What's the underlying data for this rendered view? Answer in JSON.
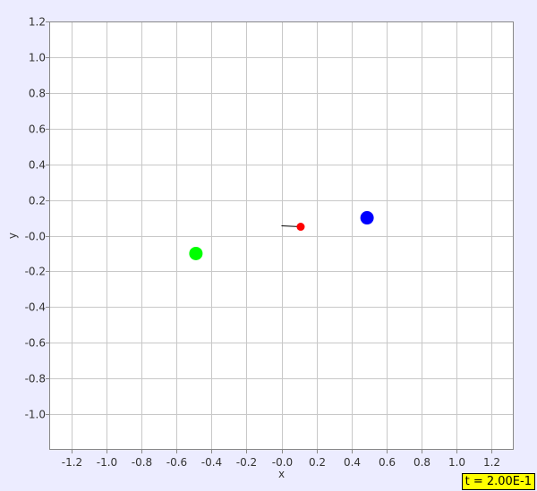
{
  "chart_data": {
    "type": "scatter",
    "xlabel": "x",
    "ylabel": "y",
    "xlim": [
      -1.33,
      1.33
    ],
    "ylim": [
      -1.2,
      1.2
    ],
    "x_ticks": [
      -1.2,
      -1.0,
      -0.8,
      -0.6,
      -0.4,
      -0.2,
      0.0,
      0.2,
      0.4,
      0.6,
      0.8,
      1.0,
      1.2
    ],
    "x_tick_labels": [
      "-1.2",
      "-1.0",
      "-0.8",
      "-0.6",
      "-0.4",
      "-0.2",
      "-0.0",
      "0.2",
      "0.4",
      "0.6",
      "0.8",
      "1.0",
      "1.2"
    ],
    "y_ticks": [
      1.2,
      1.0,
      0.8,
      0.6,
      0.4,
      0.2,
      0.0,
      -0.2,
      -0.4,
      -0.6,
      -0.8,
      -1.0
    ],
    "y_tick_labels": [
      "1.2",
      "1.0",
      "0.8",
      "0.6",
      "0.4",
      "0.2",
      "-0.0",
      "-0.2",
      "-0.4",
      "-0.6",
      "-0.8",
      "-1.0"
    ],
    "grid": true,
    "points": [
      {
        "x": -0.49,
        "y": -0.1,
        "color": "#00ff00",
        "size": "large"
      },
      {
        "x": 0.49,
        "y": 0.1,
        "color": "#0000ff",
        "size": "large"
      },
      {
        "x": 0.11,
        "y": 0.05,
        "color": "#ff0000",
        "size": "small"
      }
    ],
    "trails": [
      {
        "from": [
          0.0,
          0.055
        ],
        "to": [
          0.11,
          0.05
        ],
        "color": "#000000"
      }
    ],
    "colors": {
      "background": "#ececff",
      "plot_area": "#ffffff",
      "grid": "#c8c8c8",
      "frame": "#888888"
    }
  },
  "time_readout": {
    "label": "t = 2.00E-1",
    "background": "#ffff00"
  }
}
